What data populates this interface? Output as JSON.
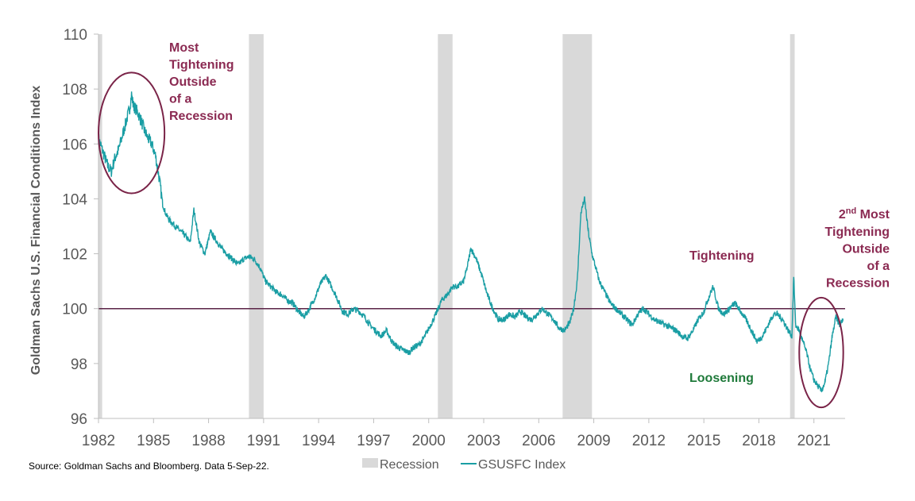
{
  "chart_data": {
    "type": "line",
    "title": "",
    "xlabel": "",
    "ylabel": "Goldman Sachs U.S. Financial Conditions Index",
    "xlim": [
      1982,
      2022.7
    ],
    "ylim": [
      96,
      110
    ],
    "x_ticks": [
      "1982",
      "1985",
      "1988",
      "1991",
      "1994",
      "1997",
      "2000",
      "2003",
      "2006",
      "2009",
      "2012",
      "2015",
      "2018",
      "2021"
    ],
    "y_ticks": [
      "96",
      "98",
      "100",
      "102",
      "104",
      "106",
      "108",
      "110"
    ],
    "grid": false,
    "legend_placement": "bottom",
    "reference_line": {
      "y": 100,
      "color": "#5a2346"
    },
    "recessions": [
      {
        "start": 1982.0,
        "end": 1982.2
      },
      {
        "start": 1990.2,
        "end": 1991.0
      },
      {
        "start": 2000.5,
        "end": 2001.3
      },
      {
        "start": 2007.3,
        "end": 2008.9
      },
      {
        "start": 2019.7,
        "end": 2019.95
      }
    ],
    "series": [
      {
        "name": "GSUSFC Index",
        "color": "#1a9ea4",
        "x": [
          1982.0,
          1982.1,
          1982.3,
          1982.5,
          1982.7,
          1982.9,
          1983.1,
          1983.3,
          1983.5,
          1983.7,
          1983.8,
          1983.9,
          1984.1,
          1984.3,
          1984.5,
          1984.7,
          1984.9,
          1985.1,
          1985.3,
          1985.5,
          1985.7,
          1985.9,
          1986.2,
          1986.5,
          1986.8,
          1987.0,
          1987.2,
          1987.5,
          1987.8,
          1988.1,
          1988.4,
          1988.7,
          1989.0,
          1989.3,
          1989.6,
          1989.9,
          1990.2,
          1990.5,
          1990.8,
          1991.1,
          1991.4,
          1991.7,
          1992.0,
          1992.3,
          1992.6,
          1992.9,
          1993.2,
          1993.5,
          1993.8,
          1994.1,
          1994.4,
          1994.7,
          1995.0,
          1995.3,
          1995.6,
          1995.9,
          1996.2,
          1996.5,
          1996.8,
          1997.1,
          1997.4,
          1997.7,
          1998.0,
          1998.3,
          1998.6,
          1998.9,
          1999.2,
          1999.5,
          1999.8,
          2000.1,
          2000.4,
          2000.7,
          2001.0,
          2001.3,
          2001.6,
          2001.9,
          2002.1,
          2002.3,
          2002.6,
          2002.9,
          2003.2,
          2003.5,
          2003.8,
          2004.1,
          2004.4,
          2004.7,
          2005.0,
          2005.3,
          2005.6,
          2005.9,
          2006.2,
          2006.5,
          2006.8,
          2007.1,
          2007.4,
          2007.7,
          2007.9,
          2008.1,
          2008.3,
          2008.5,
          2008.7,
          2008.9,
          2009.1,
          2009.3,
          2009.6,
          2009.9,
          2010.2,
          2010.5,
          2010.8,
          2011.1,
          2011.4,
          2011.7,
          2012.0,
          2012.3,
          2012.6,
          2012.9,
          2013.2,
          2013.5,
          2013.8,
          2014.1,
          2014.4,
          2014.7,
          2015.0,
          2015.2,
          2015.5,
          2015.8,
          2016.1,
          2016.4,
          2016.7,
          2017.0,
          2017.3,
          2017.6,
          2017.9,
          2018.2,
          2018.5,
          2018.8,
          2019.0,
          2019.3,
          2019.6,
          2019.8,
          2019.9,
          2020.0,
          2020.2,
          2020.4,
          2020.6,
          2020.8,
          2021.0,
          2021.2,
          2021.4,
          2021.6,
          2021.8,
          2022.0,
          2022.2,
          2022.4,
          2022.6
        ],
        "values": [
          106.2,
          106.0,
          105.6,
          105.2,
          105.0,
          105.5,
          105.8,
          106.3,
          106.8,
          107.3,
          107.8,
          107.4,
          107.2,
          106.9,
          106.5,
          106.2,
          106.0,
          105.6,
          104.8,
          103.8,
          103.4,
          103.2,
          103.0,
          102.8,
          102.6,
          102.4,
          103.6,
          102.4,
          102.0,
          102.8,
          102.5,
          102.2,
          102.0,
          101.8,
          101.6,
          101.8,
          101.9,
          101.8,
          101.5,
          101.0,
          100.8,
          100.6,
          100.5,
          100.3,
          100.2,
          99.9,
          99.7,
          100.0,
          100.4,
          100.9,
          101.2,
          100.8,
          100.4,
          99.9,
          99.8,
          100.0,
          99.9,
          99.7,
          99.4,
          99.2,
          99.0,
          99.2,
          98.8,
          98.6,
          98.5,
          98.4,
          98.6,
          98.7,
          99.0,
          99.4,
          99.8,
          100.3,
          100.5,
          100.8,
          100.8,
          101.0,
          101.5,
          102.2,
          101.8,
          101.2,
          100.5,
          100.0,
          99.6,
          99.6,
          99.8,
          99.7,
          99.9,
          99.7,
          99.6,
          99.8,
          100.0,
          99.8,
          99.6,
          99.3,
          99.2,
          99.5,
          100.0,
          101.0,
          103.5,
          104.0,
          102.8,
          102.0,
          101.5,
          101.0,
          100.6,
          100.2,
          100.0,
          99.8,
          99.6,
          99.4,
          99.8,
          100.0,
          99.8,
          99.6,
          99.5,
          99.4,
          99.3,
          99.2,
          99.0,
          98.9,
          99.2,
          99.6,
          99.9,
          100.3,
          100.8,
          100.0,
          99.8,
          100.0,
          100.2,
          99.9,
          99.6,
          99.2,
          98.8,
          99.0,
          99.4,
          99.8,
          99.8,
          99.6,
          99.2,
          99.0,
          101.2,
          99.4,
          99.2,
          98.8,
          98.4,
          97.8,
          97.4,
          97.2,
          97.0,
          97.3,
          98.0,
          99.0,
          99.7,
          99.4,
          99.6
        ]
      }
    ],
    "annotations": [
      {
        "id": "most",
        "lines": [
          "Most",
          "Tightening",
          "Outside",
          "of a",
          "Recession"
        ],
        "color": "#8b2a52"
      },
      {
        "id": "second",
        "sup_prefix": "2",
        "sup": "nd",
        "line1_rest": " Most",
        "lines": [
          "Tightening",
          "Outside",
          "of a",
          "Recession"
        ],
        "color": "#8b2a52"
      },
      {
        "id": "tightening",
        "text": "Tightening",
        "color": "#8b2a52"
      },
      {
        "id": "loosening",
        "text": "Loosening",
        "color": "#1f7a3a"
      }
    ],
    "circles": [
      {
        "center_x": 1983.8,
        "center_y": 106.4,
        "rx_years": 1.8,
        "ry_units": 2.2,
        "color": "#7a2448"
      },
      {
        "center_x": 2021.4,
        "center_y": 98.4,
        "rx_years": 1.2,
        "ry_units": 2.0,
        "color": "#7a2448"
      }
    ],
    "legend": [
      {
        "label": "Recession",
        "color": "#d9d9d9",
        "kind": "box"
      },
      {
        "label": "GSUSFC Index",
        "color": "#1a9ea4",
        "kind": "line"
      }
    ],
    "source": "Source: Goldman Sachs and Bloomberg. Data 5-Sep-22."
  }
}
